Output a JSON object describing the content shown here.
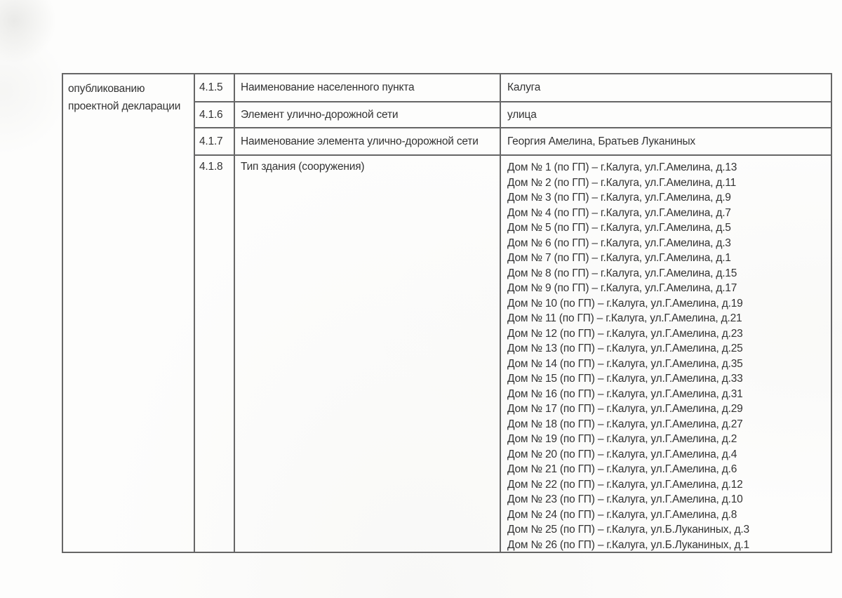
{
  "page": {
    "colors": {
      "background": "#fdfdfc",
      "table_border": "#666666",
      "text": "#333333"
    }
  },
  "table": {
    "section_cell": "опубликованию проектной декларации",
    "rows": [
      {
        "num": "4.1.5",
        "label": "Наименование населенного пункта",
        "value": "Калуга"
      },
      {
        "num": "4.1.6",
        "label": "Элемент улично-дорожной сети",
        "value": "улица"
      },
      {
        "num": "4.1.7",
        "label": "Наименование элемента улично-дорожной сети",
        "value": "Георгия Амелина, Братьев Луканиных"
      },
      {
        "num": "4.1.8",
        "label": "Тип здания (сооружения)",
        "value_lines": [
          "Дом № 1 (по ГП) – г.Калуга, ул.Г.Амелина, д.13",
          "Дом № 2 (по ГП) – г.Калуга, ул.Г.Амелина, д.11",
          "Дом № 3 (по ГП) – г.Калуга, ул.Г.Амелина, д.9",
          "Дом № 4 (по ГП) – г.Калуга, ул.Г.Амелина, д.7",
          "Дом № 5 (по ГП) – г.Калуга, ул.Г.Амелина, д.5",
          "Дом № 6 (по ГП) – г.Калуга, ул.Г.Амелина, д.3",
          "Дом № 7 (по ГП) – г.Калуга, ул.Г.Амелина, д.1",
          "Дом № 8 (по ГП) – г.Калуга, ул.Г.Амелина, д.15",
          "Дом № 9 (по ГП) – г.Калуга, ул.Г.Амелина, д.17",
          "Дом № 10 (по ГП) – г.Калуга, ул.Г.Амелина, д.19",
          "Дом № 11 (по ГП) – г.Калуга, ул.Г.Амелина, д.21",
          "Дом № 12 (по ГП) – г.Калуга, ул.Г.Амелина, д.23",
          "Дом № 13 (по ГП) – г.Калуга, ул.Г.Амелина, д.25",
          "Дом № 14 (по ГП) – г.Калуга, ул.Г.Амелина, д.35",
          "Дом № 15 (по ГП) – г.Калуга, ул.Г.Амелина, д.33",
          "Дом № 16 (по ГП) – г.Калуга, ул.Г.Амелина, д.31",
          "Дом № 17 (по ГП) – г.Калуга, ул.Г.Амелина, д.29",
          "Дом № 18 (по ГП) – г.Калуга, ул.Г.Амелина, д.27",
          "Дом № 19 (по ГП) – г.Калуга, ул.Г.Амелина, д.2",
          "Дом № 20 (по ГП) – г.Калуга, ул.Г.Амелина, д.4",
          "Дом № 21 (по ГП) – г.Калуга, ул.Г.Амелина, д.6",
          "Дом № 22 (по ГП) – г.Калуга, ул.Г.Амелина, д.12",
          "Дом № 23 (по ГП) – г.Калуга, ул.Г.Амелина, д.10",
          "Дом № 24 (по ГП) – г.Калуга, ул.Г.Амелина, д.8",
          "Дом № 25 (по ГП) – г.Калуга, ул.Б.Луканиных, д.3",
          "Дом № 26 (по ГП) – г.Калуга, ул.Б.Луканиных, д.1"
        ]
      }
    ]
  }
}
